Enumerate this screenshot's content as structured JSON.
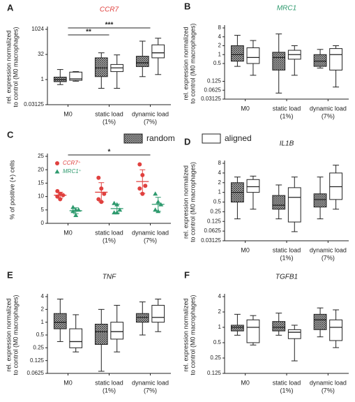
{
  "chart_data": [
    {
      "type": "box",
      "panel_label": "A",
      "title": "CCR7",
      "title_color": "#e0413f",
      "ylabel": [
        "rel. expression normalized",
        "to control (M0 macrophages)"
      ],
      "categories": [
        [
          "M0"
        ],
        [
          "static load",
          "(1%)"
        ],
        [
          "dynamic load",
          "(7%)"
        ]
      ],
      "log_scale": true,
      "ylim": [
        0.03125,
        1024
      ],
      "yticks": [
        0.03125,
        1,
        32,
        1024
      ],
      "series": [
        {
          "name": "random",
          "values": [
            [
              0.5,
              0.75,
              1,
              1.4,
              4
            ],
            [
              0.3,
              1.5,
              5,
              20,
              40
            ],
            [
              1.5,
              6,
              10,
              25,
              200
            ]
          ]
        },
        {
          "name": "aligned",
          "values": [
            [
              0.8,
              0.9,
              1.1,
              2.8,
              3
            ],
            [
              0.3,
              3,
              5,
              8,
              30
            ],
            [
              2,
              20,
              40,
              120,
              300
            ]
          ]
        }
      ],
      "annotations": [
        {
          "text": "***",
          "span": [
            0,
            2
          ]
        },
        {
          "text": "**",
          "span": [
            0,
            1
          ]
        }
      ]
    },
    {
      "type": "box",
      "panel_label": "B",
      "title": "MRC1",
      "title_color": "#2e9a6e",
      "ylabel": [
        "rel. expression normalized",
        "to control (M0 macrophages)"
      ],
      "categories": [
        [
          "M0"
        ],
        [
          "static load",
          "(1%)"
        ],
        [
          "dynamic load",
          "(7%)"
        ]
      ],
      "log_scale": true,
      "ylim": [
        0.03125,
        8
      ],
      "yticks": [
        0.03125,
        0.0625,
        0.125,
        0.5,
        1,
        2,
        4,
        8
      ],
      "series": [
        {
          "name": "random",
          "values": [
            [
              0.4,
              0.6,
              1,
              2,
              4.5
            ],
            [
              0.05,
              0.3,
              0.8,
              1.2,
              5
            ],
            [
              0.35,
              0.4,
              0.6,
              1,
              1.5
            ]
          ]
        },
        {
          "name": "aligned",
          "values": [
            [
              0.2,
              0.5,
              0.8,
              1.7,
              3
            ],
            [
              0.2,
              0.7,
              1,
              1.4,
              2
            ],
            [
              0.08,
              0.3,
              1,
              1.6,
              2
            ]
          ]
        }
      ]
    },
    {
      "type": "dot",
      "panel_label": "C",
      "ylabel": [
        "% of positive (+) cells"
      ],
      "categories": [
        [
          "M0"
        ],
        [
          "static load",
          "(1%)"
        ],
        [
          "dynamic load",
          "(7%)"
        ]
      ],
      "log_scale": false,
      "ylim": [
        0,
        25
      ],
      "yticks": [
        0,
        5,
        10,
        15,
        20,
        25
      ],
      "series": [
        {
          "name": "CCR7⁺",
          "color": "#e0413f",
          "marker": "circle",
          "values": [
            [
              12,
              11,
              10.5,
              10,
              9
            ],
            [
              17,
              13,
              11,
              9,
              8
            ],
            [
              22,
              18,
              14,
              13,
              11
            ]
          ]
        },
        {
          "name": "MRC1⁺",
          "color": "#2e9a6e",
          "marker": "triangle",
          "values": [
            [
              6,
              5,
              5,
              4.5,
              3
            ],
            [
              7.5,
              7,
              5,
              4,
              4
            ],
            [
              11,
              8,
              7,
              5,
              4.5
            ]
          ]
        }
      ],
      "annotations": [
        {
          "text": "*",
          "span": [
            0,
            2
          ]
        }
      ]
    },
    {
      "type": "box",
      "panel_label": "D",
      "title": "IL1B",
      "title_color": "#222222",
      "ylabel": [
        "rel. expression normalized",
        "to control (M0 macrophages)"
      ],
      "categories": [
        [
          "M0"
        ],
        [
          "static load",
          "(1%)"
        ],
        [
          "dynamic load",
          "(7%)"
        ]
      ],
      "log_scale": true,
      "ylim": [
        0.03125,
        8
      ],
      "yticks": [
        0.03125,
        0.0625,
        0.125,
        0.25,
        0.5,
        1,
        2,
        4,
        8
      ],
      "series": [
        {
          "name": "random",
          "values": [
            [
              0.15,
              0.5,
              1,
              2,
              3
            ],
            [
              0.15,
              0.3,
              0.4,
              0.8,
              1.7
            ],
            [
              0.15,
              0.35,
              0.6,
              0.9,
              3
            ]
          ]
        },
        {
          "name": "aligned",
          "values": [
            [
              0.3,
              1,
              1.5,
              2.5,
              3.2
            ],
            [
              0.06,
              0.12,
              0.7,
              1.4,
              3
            ],
            [
              0.3,
              0.6,
              1.5,
              4,
              7
            ]
          ]
        }
      ]
    },
    {
      "type": "box",
      "panel_label": "E",
      "title": "TNF",
      "title_color": "#222222",
      "ylabel": [
        "rel. expression normalized",
        "to control (M0 macrophages)"
      ],
      "categories": [
        [
          "M0"
        ],
        [
          "static load",
          "(1%)"
        ],
        [
          "dynamic load",
          "(7%)"
        ]
      ],
      "log_scale": true,
      "ylim": [
        0.0625,
        4
      ],
      "yticks": [
        0.0625,
        0.125,
        0.25,
        0.5,
        1,
        2,
        4
      ],
      "series": [
        {
          "name": "random",
          "values": [
            [
              0.35,
              0.7,
              1,
              1.6,
              3.5
            ],
            [
              0.07,
              0.3,
              0.6,
              0.9,
              2
            ],
            [
              0.5,
              1,
              1.3,
              1.6,
              3
            ]
          ]
        },
        {
          "name": "aligned",
          "values": [
            [
              0.2,
              0.25,
              0.35,
              0.7,
              1.5
            ],
            [
              0.2,
              0.4,
              0.6,
              1,
              2.5
            ],
            [
              0.6,
              1,
              1.3,
              2.5,
              3.5
            ]
          ]
        }
      ]
    },
    {
      "type": "box",
      "panel_label": "F",
      "title": "TGFB1",
      "title_color": "#222222",
      "ylabel": [
        "rel. expression normalized",
        "to control (M0 macrophages)"
      ],
      "categories": [
        [
          "M0"
        ],
        [
          "static load",
          "(1%)"
        ],
        [
          "dynamic load",
          "(7%)"
        ]
      ],
      "log_scale": true,
      "ylim": [
        0.125,
        4
      ],
      "yticks": [
        0.125,
        0.25,
        0.5,
        1,
        2,
        4
      ],
      "series": [
        {
          "name": "random",
          "values": [
            [
              0.7,
              0.85,
              1,
              1.1,
              1.8
            ],
            [
              0.7,
              0.85,
              1,
              1.3,
              1.9
            ],
            [
              0.65,
              0.9,
              1.4,
              1.8,
              2.4
            ]
          ]
        },
        {
          "name": "aligned",
          "values": [
            [
              0.45,
              0.5,
              1,
              1.4,
              1.7
            ],
            [
              0.22,
              0.6,
              0.8,
              0.9,
              1.1
            ],
            [
              0.4,
              0.55,
              1,
              1.4,
              2.2
            ]
          ]
        }
      ]
    }
  ]
}
